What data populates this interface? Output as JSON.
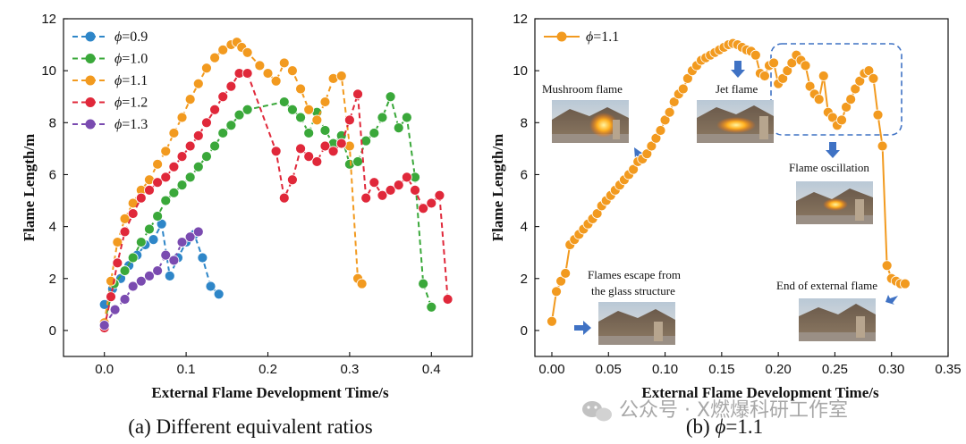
{
  "chart_data": [
    {
      "type": "line",
      "caption": "(a) Different equivalent ratios",
      "xlabel": "External Flame Development Time/s",
      "ylabel": "Flame Length/m",
      "xlim": [
        -0.05,
        0.45
      ],
      "ylim": [
        -1,
        12
      ],
      "xticks": [
        0.0,
        0.1,
        0.2,
        0.3,
        0.4
      ],
      "xtick_labels": [
        "0.0",
        "0.1",
        "0.2",
        "0.3",
        "0.4"
      ],
      "yticks": [
        0,
        2,
        4,
        6,
        8,
        10,
        12
      ],
      "legend_position": "top-left",
      "series": [
        {
          "name": "ϕ=0.9",
          "color": "#2e86c8",
          "x": [
            0.0,
            0.01,
            0.02,
            0.03,
            0.04,
            0.05,
            0.06,
            0.07,
            0.08,
            0.09,
            0.1,
            0.11,
            0.12,
            0.13,
            0.14
          ],
          "y": [
            1.0,
            1.6,
            2.0,
            2.5,
            2.9,
            3.3,
            3.5,
            4.1,
            2.1,
            2.8,
            3.4,
            3.7,
            2.8,
            1.7,
            1.4
          ]
        },
        {
          "name": "ϕ=1.0",
          "color": "#3aa83a",
          "x": [
            0.0,
            0.012,
            0.025,
            0.035,
            0.045,
            0.055,
            0.065,
            0.075,
            0.085,
            0.095,
            0.105,
            0.115,
            0.125,
            0.135,
            0.145,
            0.155,
            0.165,
            0.175,
            0.22,
            0.23,
            0.24,
            0.25,
            0.26,
            0.27,
            0.28,
            0.29,
            0.3,
            0.31,
            0.32,
            0.33,
            0.34,
            0.35,
            0.36,
            0.37,
            0.38,
            0.39,
            0.4
          ],
          "y": [
            0.3,
            1.8,
            2.3,
            2.8,
            3.4,
            3.9,
            4.4,
            5.0,
            5.3,
            5.6,
            5.9,
            6.3,
            6.7,
            7.1,
            7.6,
            7.9,
            8.3,
            8.5,
            8.8,
            8.5,
            8.2,
            7.6,
            8.4,
            7.7,
            7.2,
            7.5,
            6.4,
            6.5,
            7.3,
            7.6,
            8.2,
            9.0,
            7.8,
            8.2,
            5.9,
            1.8,
            0.9
          ]
        },
        {
          "name": "ϕ=1.1",
          "color": "#f29a1f",
          "x": [
            0.0,
            0.008,
            0.016,
            0.025,
            0.035,
            0.045,
            0.055,
            0.065,
            0.075,
            0.085,
            0.095,
            0.105,
            0.115,
            0.125,
            0.135,
            0.145,
            0.155,
            0.162,
            0.168,
            0.175,
            0.19,
            0.2,
            0.21,
            0.22,
            0.23,
            0.24,
            0.25,
            0.26,
            0.27,
            0.28,
            0.29,
            0.3,
            0.31,
            0.315
          ],
          "y": [
            0.3,
            1.9,
            3.4,
            4.3,
            4.9,
            5.4,
            5.8,
            6.4,
            6.9,
            7.6,
            8.2,
            8.9,
            9.5,
            10.1,
            10.5,
            10.8,
            11.0,
            11.1,
            10.9,
            10.7,
            10.2,
            9.9,
            9.6,
            10.3,
            10.0,
            9.3,
            8.5,
            8.1,
            8.8,
            9.7,
            9.8,
            7.1,
            2.0,
            1.8
          ]
        },
        {
          "name": "ϕ=1.2",
          "color": "#e0283a",
          "x": [
            0.0,
            0.008,
            0.016,
            0.025,
            0.035,
            0.045,
            0.055,
            0.065,
            0.075,
            0.085,
            0.095,
            0.105,
            0.115,
            0.125,
            0.135,
            0.145,
            0.155,
            0.165,
            0.175,
            0.21,
            0.22,
            0.23,
            0.24,
            0.25,
            0.26,
            0.27,
            0.28,
            0.29,
            0.3,
            0.31,
            0.32,
            0.33,
            0.34,
            0.35,
            0.36,
            0.37,
            0.38,
            0.39,
            0.4,
            0.41,
            0.42
          ],
          "y": [
            0.1,
            1.3,
            2.6,
            3.8,
            4.5,
            5.1,
            5.4,
            5.7,
            5.9,
            6.3,
            6.7,
            7.1,
            7.5,
            8.0,
            8.5,
            9.0,
            9.4,
            9.9,
            9.9,
            6.9,
            5.1,
            5.8,
            7.0,
            6.7,
            6.5,
            7.1,
            6.9,
            7.2,
            8.1,
            9.1,
            5.1,
            5.7,
            5.2,
            5.4,
            5.6,
            5.9,
            5.4,
            4.7,
            4.9,
            5.2,
            1.2
          ]
        },
        {
          "name": "ϕ=1.3",
          "color": "#7a4bb0",
          "x": [
            0.0,
            0.013,
            0.025,
            0.035,
            0.045,
            0.055,
            0.065,
            0.075,
            0.085,
            0.095,
            0.105,
            0.115
          ],
          "y": [
            0.2,
            0.8,
            1.2,
            1.7,
            1.9,
            2.1,
            2.3,
            2.9,
            2.7,
            3.4,
            3.6,
            3.8
          ]
        }
      ]
    },
    {
      "type": "line",
      "caption_prefix": "(b) ",
      "caption_phi": "ϕ",
      "caption_suffix": "=1.1",
      "xlabel": "External Flame Development Time/s",
      "ylabel": "Flame Length/m",
      "xlim": [
        -0.015,
        0.35
      ],
      "ylim": [
        -1,
        12
      ],
      "xticks": [
        0.0,
        0.05,
        0.1,
        0.15,
        0.2,
        0.25,
        0.3,
        0.35
      ],
      "xtick_labels": [
        "0.00",
        "0.05",
        "0.10",
        "0.15",
        "0.20",
        "0.25",
        "0.30",
        "0.35"
      ],
      "yticks": [
        0,
        2,
        4,
        6,
        8,
        10,
        12
      ],
      "legend_position": "top-left",
      "series": [
        {
          "name": "ϕ=1.1",
          "color": "#f29a1f",
          "x": [
            0.0,
            0.004,
            0.008,
            0.012,
            0.016,
            0.02,
            0.024,
            0.028,
            0.032,
            0.036,
            0.04,
            0.044,
            0.048,
            0.052,
            0.056,
            0.06,
            0.064,
            0.068,
            0.072,
            0.076,
            0.08,
            0.084,
            0.088,
            0.092,
            0.096,
            0.1,
            0.104,
            0.108,
            0.112,
            0.116,
            0.12,
            0.124,
            0.128,
            0.132,
            0.136,
            0.14,
            0.144,
            0.148,
            0.152,
            0.156,
            0.16,
            0.164,
            0.168,
            0.172,
            0.176,
            0.18,
            0.184,
            0.188,
            0.192,
            0.196,
            0.2,
            0.204,
            0.208,
            0.212,
            0.216,
            0.22,
            0.224,
            0.228,
            0.232,
            0.236,
            0.24,
            0.244,
            0.248,
            0.252,
            0.256,
            0.26,
            0.264,
            0.268,
            0.272,
            0.276,
            0.28,
            0.284,
            0.288,
            0.292,
            0.296,
            0.3,
            0.304,
            0.308,
            0.312
          ],
          "y": [
            0.35,
            1.5,
            1.9,
            2.2,
            3.3,
            3.5,
            3.7,
            3.9,
            4.1,
            4.3,
            4.5,
            4.8,
            5.0,
            5.2,
            5.4,
            5.6,
            5.8,
            6.0,
            6.2,
            6.5,
            6.6,
            6.8,
            7.1,
            7.4,
            7.7,
            8.1,
            8.4,
            8.8,
            9.1,
            9.3,
            9.7,
            10.0,
            10.2,
            10.4,
            10.5,
            10.6,
            10.7,
            10.8,
            10.9,
            11.0,
            11.05,
            11.0,
            10.9,
            10.8,
            10.75,
            10.6,
            9.9,
            9.8,
            10.2,
            10.3,
            9.5,
            9.7,
            10.0,
            10.3,
            10.6,
            10.4,
            10.2,
            9.4,
            9.1,
            8.9,
            9.8,
            8.4,
            8.2,
            7.9,
            8.1,
            8.6,
            8.9,
            9.3,
            9.6,
            9.9,
            10.0,
            9.7,
            8.3,
            7.1,
            2.5,
            2.0,
            1.9,
            1.8,
            1.8
          ]
        }
      ],
      "annotations": {
        "mushroom": "Mushroom flame",
        "jet": "Jet flame",
        "oscillation": "Flame oscillation",
        "escape_line1": "Flames escape from",
        "escape_line2": "the glass structure",
        "end": "End of external flame"
      },
      "arrow_color": "#3f72c4",
      "box_color": "#3f72c4"
    }
  ],
  "watermark": "公众号 · X燃爆科研工作室"
}
